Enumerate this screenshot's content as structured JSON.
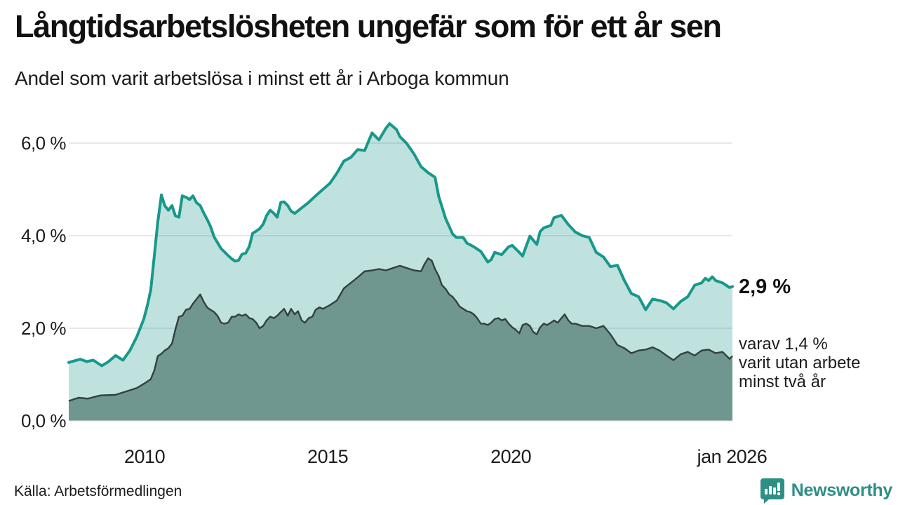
{
  "header": {
    "title": "Långtidsarbetslösheten ungefär som för ett år sen",
    "subtitle": "Andel som varit arbetslösa i minst ett år i Arboga kommun"
  },
  "chart_data": {
    "type": "area",
    "title": "Långtidsarbetslösheten ungefär som för ett år sen",
    "subtitle": "Andel som varit arbetslösa i minst ett år i Arboga kommun",
    "xlabel": "",
    "ylabel": "",
    "x_domain": [
      2007.93,
      2026.05
    ],
    "y_domain": [
      0,
      6.55
    ],
    "grid": true,
    "colors": {
      "line_1yr": "#18988b",
      "fill_1yr": "rgba(24,152,139,0.28)",
      "line_2yr": "#32413f",
      "fill_2yr": "#6f9790",
      "gridline": "#dfe0e3"
    },
    "y_ticks": [
      {
        "value": 0,
        "label": "0,0 %"
      },
      {
        "value": 2,
        "label": "2,0 %"
      },
      {
        "value": 4,
        "label": "4,0 %"
      },
      {
        "value": 6,
        "label": "6,0 %"
      }
    ],
    "x_ticks": [
      {
        "value": 2010,
        "label": "2010"
      },
      {
        "value": 2015,
        "label": "2015"
      },
      {
        "value": 2020,
        "label": "2020"
      },
      {
        "value": 2026.04,
        "label": "jan 2026"
      }
    ],
    "annotations": {
      "primary": "2,9 %",
      "secondary": {
        "lines": [
          "varav 1,4 %",
          "varit utan arbete",
          "minst två år"
        ]
      }
    },
    "series": [
      {
        "name": "Andel arbetslösa minst ett år",
        "end_label": "2,9 %",
        "points": [
          [
            2007.93,
            1.26
          ],
          [
            2008.1,
            1.3
          ],
          [
            2008.25,
            1.33
          ],
          [
            2008.42,
            1.28
          ],
          [
            2008.6,
            1.31
          ],
          [
            2008.83,
            1.19
          ],
          [
            2009.0,
            1.27
          ],
          [
            2009.21,
            1.41
          ],
          [
            2009.41,
            1.31
          ],
          [
            2009.6,
            1.52
          ],
          [
            2009.79,
            1.82
          ],
          [
            2009.98,
            2.2
          ],
          [
            2010.08,
            2.5
          ],
          [
            2010.17,
            2.83
          ],
          [
            2010.27,
            3.6
          ],
          [
            2010.36,
            4.3
          ],
          [
            2010.46,
            4.88
          ],
          [
            2010.55,
            4.65
          ],
          [
            2010.65,
            4.55
          ],
          [
            2010.75,
            4.65
          ],
          [
            2010.84,
            4.43
          ],
          [
            2010.94,
            4.4
          ],
          [
            2011.03,
            4.86
          ],
          [
            2011.13,
            4.83
          ],
          [
            2011.23,
            4.78
          ],
          [
            2011.32,
            4.86
          ],
          [
            2011.42,
            4.71
          ],
          [
            2011.52,
            4.65
          ],
          [
            2011.61,
            4.5
          ],
          [
            2011.71,
            4.35
          ],
          [
            2011.8,
            4.2
          ],
          [
            2011.9,
            3.97
          ],
          [
            2011.99,
            3.85
          ],
          [
            2012.09,
            3.72
          ],
          [
            2012.18,
            3.65
          ],
          [
            2012.28,
            3.57
          ],
          [
            2012.38,
            3.5
          ],
          [
            2012.47,
            3.45
          ],
          [
            2012.57,
            3.47
          ],
          [
            2012.66,
            3.6
          ],
          [
            2012.76,
            3.62
          ],
          [
            2012.86,
            3.77
          ],
          [
            2012.95,
            4.05
          ],
          [
            2013.05,
            4.1
          ],
          [
            2013.14,
            4.15
          ],
          [
            2013.24,
            4.25
          ],
          [
            2013.33,
            4.43
          ],
          [
            2013.43,
            4.55
          ],
          [
            2013.53,
            4.48
          ],
          [
            2013.62,
            4.4
          ],
          [
            2013.72,
            4.72
          ],
          [
            2013.81,
            4.73
          ],
          [
            2013.91,
            4.65
          ],
          [
            2014.0,
            4.53
          ],
          [
            2014.1,
            4.48
          ],
          [
            2014.29,
            4.6
          ],
          [
            2014.48,
            4.72
          ],
          [
            2014.67,
            4.86
          ],
          [
            2014.87,
            5.0
          ],
          [
            2015.06,
            5.13
          ],
          [
            2015.25,
            5.35
          ],
          [
            2015.44,
            5.61
          ],
          [
            2015.63,
            5.69
          ],
          [
            2015.82,
            5.86
          ],
          [
            2016.01,
            5.84
          ],
          [
            2016.21,
            6.22
          ],
          [
            2016.4,
            6.07
          ],
          [
            2016.59,
            6.32
          ],
          [
            2016.69,
            6.42
          ],
          [
            2016.88,
            6.29
          ],
          [
            2016.97,
            6.14
          ],
          [
            2017.16,
            5.99
          ],
          [
            2017.36,
            5.76
          ],
          [
            2017.55,
            5.49
          ],
          [
            2017.74,
            5.36
          ],
          [
            2017.93,
            5.26
          ],
          [
            2018.03,
            4.85
          ],
          [
            2018.22,
            4.37
          ],
          [
            2018.41,
            4.04
          ],
          [
            2018.51,
            3.96
          ],
          [
            2018.7,
            3.96
          ],
          [
            2018.8,
            3.84
          ],
          [
            2018.99,
            3.76
          ],
          [
            2019.18,
            3.66
          ],
          [
            2019.37,
            3.43
          ],
          [
            2019.46,
            3.48
          ],
          [
            2019.56,
            3.64
          ],
          [
            2019.75,
            3.59
          ],
          [
            2019.94,
            3.76
          ],
          [
            2020.04,
            3.79
          ],
          [
            2020.23,
            3.64
          ],
          [
            2020.32,
            3.56
          ],
          [
            2020.52,
            3.99
          ],
          [
            2020.71,
            3.81
          ],
          [
            2020.8,
            4.09
          ],
          [
            2020.9,
            4.17
          ],
          [
            2021.09,
            4.22
          ],
          [
            2021.18,
            4.39
          ],
          [
            2021.38,
            4.44
          ],
          [
            2021.57,
            4.24
          ],
          [
            2021.76,
            4.08
          ],
          [
            2021.95,
            4.0
          ],
          [
            2022.14,
            3.96
          ],
          [
            2022.33,
            3.64
          ],
          [
            2022.53,
            3.54
          ],
          [
            2022.72,
            3.33
          ],
          [
            2022.91,
            3.36
          ],
          [
            2023.1,
            3.03
          ],
          [
            2023.29,
            2.75
          ],
          [
            2023.49,
            2.68
          ],
          [
            2023.68,
            2.4
          ],
          [
            2023.87,
            2.63
          ],
          [
            2024.06,
            2.6
          ],
          [
            2024.25,
            2.55
          ],
          [
            2024.44,
            2.42
          ],
          [
            2024.64,
            2.58
          ],
          [
            2024.83,
            2.68
          ],
          [
            2025.02,
            2.93
          ],
          [
            2025.21,
            2.98
          ],
          [
            2025.31,
            3.08
          ],
          [
            2025.4,
            3.03
          ],
          [
            2025.5,
            3.11
          ],
          [
            2025.59,
            3.03
          ],
          [
            2025.78,
            2.98
          ],
          [
            2025.97,
            2.88
          ],
          [
            2026.05,
            2.9
          ]
        ]
      },
      {
        "name": "Andel arbetslösa minst två år",
        "end_label": "varav 1,4 % varit utan arbete minst två år",
        "points": [
          [
            2007.93,
            0.43
          ],
          [
            2008.2,
            0.5
          ],
          [
            2008.45,
            0.48
          ],
          [
            2008.8,
            0.55
          ],
          [
            2009.2,
            0.56
          ],
          [
            2009.6,
            0.66
          ],
          [
            2009.79,
            0.71
          ],
          [
            2009.98,
            0.8
          ],
          [
            2010.17,
            0.9
          ],
          [
            2010.27,
            1.1
          ],
          [
            2010.36,
            1.4
          ],
          [
            2010.46,
            1.45
          ],
          [
            2010.55,
            1.52
          ],
          [
            2010.65,
            1.57
          ],
          [
            2010.75,
            1.67
          ],
          [
            2010.84,
            1.97
          ],
          [
            2010.94,
            2.25
          ],
          [
            2011.03,
            2.27
          ],
          [
            2011.13,
            2.4
          ],
          [
            2011.23,
            2.42
          ],
          [
            2011.32,
            2.53
          ],
          [
            2011.42,
            2.63
          ],
          [
            2011.52,
            2.73
          ],
          [
            2011.61,
            2.58
          ],
          [
            2011.71,
            2.45
          ],
          [
            2011.8,
            2.4
          ],
          [
            2011.9,
            2.35
          ],
          [
            2011.99,
            2.27
          ],
          [
            2012.09,
            2.12
          ],
          [
            2012.18,
            2.1
          ],
          [
            2012.28,
            2.12
          ],
          [
            2012.38,
            2.25
          ],
          [
            2012.47,
            2.25
          ],
          [
            2012.57,
            2.3
          ],
          [
            2012.66,
            2.27
          ],
          [
            2012.76,
            2.3
          ],
          [
            2012.86,
            2.22
          ],
          [
            2012.95,
            2.2
          ],
          [
            2013.05,
            2.12
          ],
          [
            2013.14,
            2.0
          ],
          [
            2013.24,
            2.05
          ],
          [
            2013.33,
            2.17
          ],
          [
            2013.43,
            2.25
          ],
          [
            2013.53,
            2.22
          ],
          [
            2013.62,
            2.27
          ],
          [
            2013.72,
            2.35
          ],
          [
            2013.81,
            2.42
          ],
          [
            2013.91,
            2.27
          ],
          [
            2014.0,
            2.42
          ],
          [
            2014.1,
            2.3
          ],
          [
            2014.19,
            2.37
          ],
          [
            2014.29,
            2.17
          ],
          [
            2014.38,
            2.12
          ],
          [
            2014.48,
            2.22
          ],
          [
            2014.58,
            2.25
          ],
          [
            2014.67,
            2.4
          ],
          [
            2014.77,
            2.45
          ],
          [
            2014.87,
            2.42
          ],
          [
            2015.06,
            2.5
          ],
          [
            2015.25,
            2.6
          ],
          [
            2015.44,
            2.86
          ],
          [
            2015.63,
            2.98
          ],
          [
            2015.82,
            3.1
          ],
          [
            2016.01,
            3.23
          ],
          [
            2016.21,
            3.25
          ],
          [
            2016.4,
            3.28
          ],
          [
            2016.59,
            3.25
          ],
          [
            2016.78,
            3.3
          ],
          [
            2016.97,
            3.35
          ],
          [
            2017.16,
            3.3
          ],
          [
            2017.36,
            3.25
          ],
          [
            2017.55,
            3.23
          ],
          [
            2017.64,
            3.38
          ],
          [
            2017.74,
            3.51
          ],
          [
            2017.84,
            3.46
          ],
          [
            2017.93,
            3.28
          ],
          [
            2018.03,
            3.13
          ],
          [
            2018.12,
            2.93
          ],
          [
            2018.22,
            2.85
          ],
          [
            2018.32,
            2.73
          ],
          [
            2018.41,
            2.68
          ],
          [
            2018.51,
            2.58
          ],
          [
            2018.6,
            2.47
          ],
          [
            2018.7,
            2.42
          ],
          [
            2018.8,
            2.37
          ],
          [
            2018.89,
            2.35
          ],
          [
            2018.99,
            2.3
          ],
          [
            2019.08,
            2.22
          ],
          [
            2019.18,
            2.1
          ],
          [
            2019.27,
            2.1
          ],
          [
            2019.37,
            2.07
          ],
          [
            2019.46,
            2.12
          ],
          [
            2019.56,
            2.2
          ],
          [
            2019.66,
            2.22
          ],
          [
            2019.75,
            2.17
          ],
          [
            2019.85,
            2.2
          ],
          [
            2019.94,
            2.1
          ],
          [
            2020.04,
            2.02
          ],
          [
            2020.13,
            1.97
          ],
          [
            2020.23,
            1.89
          ],
          [
            2020.32,
            2.07
          ],
          [
            2020.42,
            2.1
          ],
          [
            2020.52,
            2.05
          ],
          [
            2020.61,
            1.92
          ],
          [
            2020.71,
            1.87
          ],
          [
            2020.8,
            2.02
          ],
          [
            2020.9,
            2.1
          ],
          [
            2020.99,
            2.07
          ],
          [
            2021.09,
            2.12
          ],
          [
            2021.18,
            2.17
          ],
          [
            2021.28,
            2.12
          ],
          [
            2021.38,
            2.22
          ],
          [
            2021.47,
            2.3
          ],
          [
            2021.57,
            2.17
          ],
          [
            2021.66,
            2.1
          ],
          [
            2021.76,
            2.1
          ],
          [
            2021.95,
            2.05
          ],
          [
            2022.14,
            2.05
          ],
          [
            2022.33,
            2.0
          ],
          [
            2022.53,
            2.05
          ],
          [
            2022.72,
            1.87
          ],
          [
            2022.91,
            1.64
          ],
          [
            2023.1,
            1.57
          ],
          [
            2023.29,
            1.46
          ],
          [
            2023.49,
            1.52
          ],
          [
            2023.68,
            1.54
          ],
          [
            2023.87,
            1.59
          ],
          [
            2024.06,
            1.52
          ],
          [
            2024.25,
            1.41
          ],
          [
            2024.44,
            1.31
          ],
          [
            2024.64,
            1.44
          ],
          [
            2024.83,
            1.49
          ],
          [
            2025.02,
            1.41
          ],
          [
            2025.21,
            1.52
          ],
          [
            2025.4,
            1.54
          ],
          [
            2025.59,
            1.46
          ],
          [
            2025.78,
            1.49
          ],
          [
            2025.97,
            1.34
          ],
          [
            2026.05,
            1.4
          ]
        ]
      }
    ]
  },
  "footer": {
    "source": "Källa: Arbetsförmedlingen",
    "brand": "Newsworthy"
  }
}
